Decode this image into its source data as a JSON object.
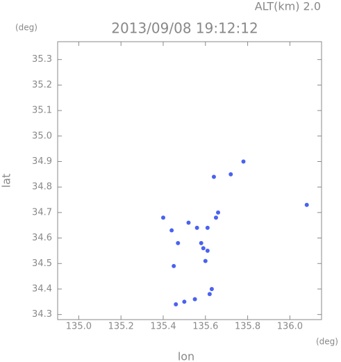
{
  "chart_data": {
    "type": "scatter",
    "annotation": "ALT(km) 2.0",
    "title": "2013/09/08 19:12:12",
    "y_unit": "(deg)",
    "x_unit": "(deg)",
    "x_label": "lon",
    "y_label": "lat",
    "color": "#4a62f0",
    "x": [
      136.08,
      135.63,
      135.62,
      135.55,
      135.5,
      135.46,
      135.45,
      135.6,
      135.59,
      135.61,
      135.58,
      135.61,
      135.56,
      135.52,
      135.44,
      135.4,
      135.65,
      135.66,
      135.78,
      135.72,
      135.64,
      135.47
    ],
    "values": [
      34.73,
      34.4,
      34.38,
      34.36,
      34.35,
      34.34,
      34.49,
      34.51,
      34.56,
      34.55,
      34.58,
      34.64,
      34.64,
      34.66,
      34.63,
      34.68,
      34.68,
      34.7,
      34.9,
      34.85,
      34.84,
      34.58
    ],
    "xlim": [
      134.9,
      136.15
    ],
    "ylim": [
      34.28,
      35.37
    ],
    "xticks": [
      {
        "value": 135,
        "label": "135.0"
      },
      135.2,
      135.4,
      135.6,
      135.8,
      {
        "value": 136,
        "label": "136.0"
      }
    ],
    "yticks": [
      34.3,
      34.4,
      34.5,
      34.6,
      34.7,
      34.8,
      34.9,
      {
        "value": 35,
        "label": "35.0"
      },
      35.1,
      35.2,
      35.3
    ]
  }
}
